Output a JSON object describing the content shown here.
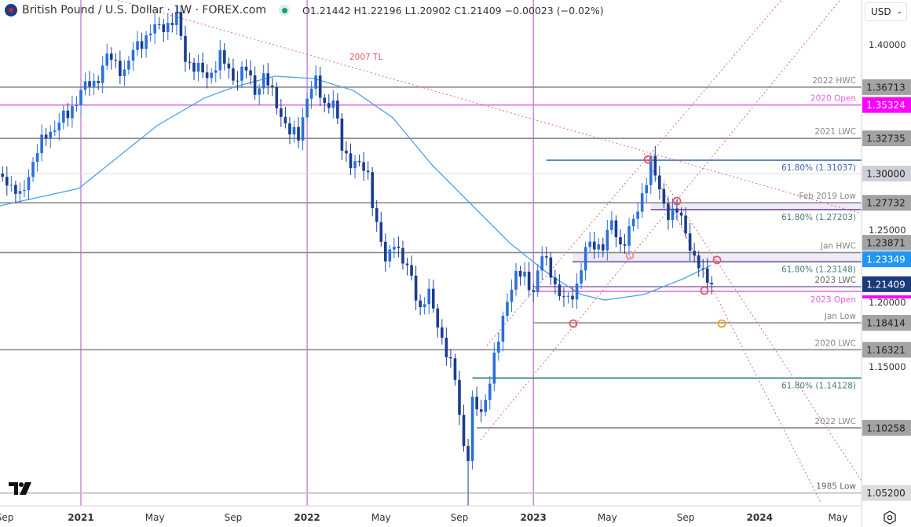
{
  "header": {
    "symbol": "British Pound / U.S. Dollar · 1W · FOREX.com",
    "ohlc": "O1.21442 H1.22196 L1.20902 C1.21409 −0.00023 (−0.02%)"
  },
  "currency_select": "USD",
  "colors": {
    "bull": "#2a6fdb",
    "bear": "#1b3d8f",
    "ma": "#4aa3e8",
    "trend": "#e06a7a",
    "vline": "#b04dc8"
  },
  "chart_data": {
    "type": "candlestick",
    "title": "British Pound / U.S. Dollar · 1W · FOREX.com",
    "ylim": [
      1.03,
      1.43
    ],
    "x_ticks": [
      {
        "label": "Sep",
        "week": -17.5,
        "bold": false
      },
      {
        "label": "2021",
        "week": 0,
        "bold": true
      },
      {
        "label": "May",
        "week": 17,
        "bold": false
      },
      {
        "label": "Sep",
        "week": 35,
        "bold": false
      },
      {
        "label": "2022",
        "week": 52,
        "bold": true
      },
      {
        "label": "May",
        "week": 69,
        "bold": false
      },
      {
        "label": "Sep",
        "week": 87,
        "bold": false
      },
      {
        "label": "2023",
        "week": 104,
        "bold": true
      },
      {
        "label": "May",
        "week": 121,
        "bold": false
      },
      {
        "label": "Sep",
        "week": 139,
        "bold": false
      },
      {
        "label": "2024",
        "week": 156,
        "bold": true
      },
      {
        "label": "May",
        "week": 174,
        "bold": false
      }
    ],
    "y_ticks": [
      "1.40000",
      "1.25000",
      "1.20000",
      "1.15000"
    ],
    "year_lines_weeks": [
      0,
      52,
      104
    ],
    "close_anchors": [
      [
        -18,
        1.3
      ],
      [
        -16,
        1.29
      ],
      [
        -14,
        1.28
      ],
      [
        -11,
        1.31
      ],
      [
        -8,
        1.33
      ],
      [
        -5,
        1.34
      ],
      [
        -3,
        1.345
      ],
      [
        0,
        1.365
      ],
      [
        3,
        1.37
      ],
      [
        6,
        1.39
      ],
      [
        8,
        1.385
      ],
      [
        10,
        1.38
      ],
      [
        13,
        1.4
      ],
      [
        16,
        1.41
      ],
      [
        19,
        1.415
      ],
      [
        22,
        1.42
      ],
      [
        24,
        1.39
      ],
      [
        27,
        1.38
      ],
      [
        29,
        1.375
      ],
      [
        32,
        1.39
      ],
      [
        35,
        1.375
      ],
      [
        38,
        1.38
      ],
      [
        40,
        1.365
      ],
      [
        42,
        1.375
      ],
      [
        45,
        1.355
      ],
      [
        48,
        1.33
      ],
      [
        50,
        1.33
      ],
      [
        52,
        1.36
      ],
      [
        54,
        1.37
      ],
      [
        56,
        1.355
      ],
      [
        58,
        1.355
      ],
      [
        60,
        1.32
      ],
      [
        62,
        1.31
      ],
      [
        64,
        1.305
      ],
      [
        66,
        1.3
      ],
      [
        68,
        1.26
      ],
      [
        70,
        1.23
      ],
      [
        72,
        1.25
      ],
      [
        74,
        1.23
      ],
      [
        76,
        1.22
      ],
      [
        78,
        1.195
      ],
      [
        80,
        1.205
      ],
      [
        82,
        1.185
      ],
      [
        84,
        1.16
      ],
      [
        86,
        1.14
      ],
      [
        88,
        1.09
      ],
      [
        89,
        1.08
      ],
      [
        90,
        1.12
      ],
      [
        92,
        1.115
      ],
      [
        94,
        1.14
      ],
      [
        96,
        1.17
      ],
      [
        98,
        1.205
      ],
      [
        100,
        1.22
      ],
      [
        102,
        1.22
      ],
      [
        104,
        1.21
      ],
      [
        106,
        1.235
      ],
      [
        108,
        1.225
      ],
      [
        110,
        1.205
      ],
      [
        112,
        1.2
      ],
      [
        114,
        1.215
      ],
      [
        116,
        1.24
      ],
      [
        118,
        1.245
      ],
      [
        120,
        1.245
      ],
      [
        122,
        1.26
      ],
      [
        124,
        1.245
      ],
      [
        126,
        1.255
      ],
      [
        128,
        1.27
      ],
      [
        129,
        1.285
      ],
      [
        131,
        1.31
      ],
      [
        133,
        1.285
      ],
      [
        135,
        1.27
      ],
      [
        137,
        1.27
      ],
      [
        139,
        1.255
      ],
      [
        141,
        1.235
      ],
      [
        143,
        1.22
      ],
      [
        145,
        1.2141
      ]
    ],
    "ma_series": [
      [
        -18.6,
        1.275
      ],
      [
        -0.5,
        1.2884
      ],
      [
        8.5,
        1.3128
      ],
      [
        17.5,
        1.3372
      ],
      [
        28.3,
        1.3585
      ],
      [
        35.6,
        1.3677
      ],
      [
        44.6,
        1.3756
      ],
      [
        53.6,
        1.3738
      ],
      [
        62.6,
        1.3646
      ],
      [
        71.7,
        1.3433
      ],
      [
        80.7,
        1.3067
      ],
      [
        89.7,
        1.2762
      ],
      [
        98.7,
        1.2457
      ],
      [
        107.8,
        1.2213
      ],
      [
        115,
        1.2061
      ],
      [
        120.4,
        1.2018
      ],
      [
        129.4,
        1.2061
      ],
      [
        138.4,
        1.2183
      ],
      [
        144.8,
        1.2287
      ]
    ],
    "levels": [
      {
        "price": 1.36713,
        "label": "2022 HWC",
        "color": "#8c8c8c",
        "text_color": "#888",
        "axis": "1.36713",
        "axis_bg": "#a3a3a3",
        "axis_fg": "#222",
        "start_week": null
      },
      {
        "price": 1.35324,
        "label": "2020 Open",
        "color": "#e26ee8",
        "text_color": "#e35ee6",
        "axis": "1.35324",
        "axis_bg": "#ff00ff",
        "axis_fg": "#fff",
        "start_week": null
      },
      {
        "price": 1.32735,
        "label": "2021 LWC",
        "color": "#8c8c8c",
        "text_color": "#888",
        "axis": "1.32735",
        "axis_bg": "#a3a3a3",
        "axis_fg": "#222",
        "start_week": null
      },
      {
        "price": 1.31037,
        "label": "61.80% (1.31037)",
        "color": "#2f62a8",
        "text_color": "#3b66b0",
        "axis": null,
        "start_week": 107
      },
      {
        "price": 1.3,
        "label": "",
        "color": "#dedede",
        "text_color": "#888",
        "axis": "1.30000",
        "axis_bg": "#cdd0d6",
        "axis_fg": "#222",
        "start_week": null
      },
      {
        "price": 1.27732,
        "label": "Feb 2019 Low",
        "color": "#8c8c8c",
        "text_color": "#888",
        "axis": "1.27732",
        "axis_bg": "#a3a3a3",
        "axis_fg": "#222",
        "start_week": null
      },
      {
        "price": 1.27203,
        "label": "61.80% (1.27203)",
        "color": "#6a4a9c",
        "text_color": "#4b7a7a",
        "axis": null,
        "start_week": 131,
        "band_to": 1.27732
      },
      {
        "price": 1.23871,
        "label": "Jan HWC",
        "color": "#8c8c8c",
        "text_color": "#888",
        "axis": "1.23871",
        "axis_bg": "#a3a3a3",
        "axis_fg": "#222",
        "start_week": null
      },
      {
        "price": 1.23148,
        "label": "61.80% (1.23148)",
        "color": "#6a4a9c",
        "text_color": "#4b7a7a",
        "axis": null,
        "start_week": 113,
        "band_to": 1.23871
      },
      {
        "price": 1.2122,
        "label": "2023 LWC",
        "color": "#8c6aa8",
        "text_color": "#666",
        "axis": null,
        "start_week": 104
      },
      {
        "price": 1.2085,
        "label": "2023 Open",
        "color": "#e26ee8",
        "text_color": "#e35ee6",
        "axis": null,
        "start_week": 104
      },
      {
        "price": 1.18414,
        "label": "Jan Low",
        "color": "#8c8c8c",
        "text_color": "#888",
        "axis": "1.18414",
        "axis_bg": "#a3a3a3",
        "axis_fg": "#222",
        "start_week": 104
      },
      {
        "price": 1.16321,
        "label": "2020 LWC",
        "color": "#8c8c8c",
        "text_color": "#888",
        "axis": "1.16321",
        "axis_bg": "#a3a3a3",
        "axis_fg": "#222",
        "start_week": null
      },
      {
        "price": 1.14128,
        "label": "61.80% (1.14128)",
        "color": "#2d7d8a",
        "text_color": "#4b7a7a",
        "axis": null,
        "start_week": 90
      },
      {
        "price": 1.10258,
        "label": "2022 LWC",
        "color": "#8c8c8c",
        "text_color": "#888",
        "axis": "1.10258",
        "axis_bg": "#a3a3a3",
        "axis_fg": "#222",
        "start_week": 91
      },
      {
        "price": 1.052,
        "label": "1985 Low",
        "color": "#bdbdbd",
        "text_color": "#666",
        "axis": "1.05200",
        "axis_bg": "#dcdcdc",
        "axis_fg": "#222",
        "start_week": null
      }
    ],
    "price_labels": [
      {
        "price": 1.23349,
        "text": "1.23349",
        "bg": "#2196f3",
        "fg": "#fff"
      },
      {
        "price": 1.21409,
        "text": "1.21409",
        "bg": "#1a3a7a",
        "fg": "#fff"
      }
    ],
    "annotations": [
      {
        "text": "2007 TL",
        "color": "#e05a6a"
      }
    ]
  }
}
